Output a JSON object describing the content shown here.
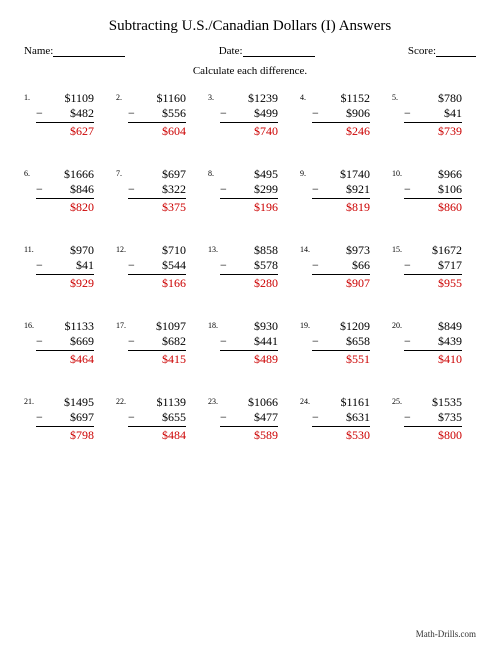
{
  "title": "Subtracting U.S./Canadian Dollars (I) Answers",
  "labels": {
    "name": "Name:",
    "date": "Date:",
    "score": "Score:"
  },
  "instruction": "Calculate each difference.",
  "footer": "Math-Drills.com",
  "colors": {
    "answer": "#cc0000",
    "text": "#000000",
    "background": "#ffffff"
  },
  "currency": "$",
  "problems": [
    {
      "n": 1,
      "a": 1109,
      "b": 482,
      "ans": 627
    },
    {
      "n": 2,
      "a": 1160,
      "b": 556,
      "ans": 604
    },
    {
      "n": 3,
      "a": 1239,
      "b": 499,
      "ans": 740
    },
    {
      "n": 4,
      "a": 1152,
      "b": 906,
      "ans": 246
    },
    {
      "n": 5,
      "a": 780,
      "b": 41,
      "ans": 739
    },
    {
      "n": 6,
      "a": 1666,
      "b": 846,
      "ans": 820
    },
    {
      "n": 7,
      "a": 697,
      "b": 322,
      "ans": 375
    },
    {
      "n": 8,
      "a": 495,
      "b": 299,
      "ans": 196
    },
    {
      "n": 9,
      "a": 1740,
      "b": 921,
      "ans": 819
    },
    {
      "n": 10,
      "a": 966,
      "b": 106,
      "ans": 860
    },
    {
      "n": 11,
      "a": 970,
      "b": 41,
      "ans": 929
    },
    {
      "n": 12,
      "a": 710,
      "b": 544,
      "ans": 166
    },
    {
      "n": 13,
      "a": 858,
      "b": 578,
      "ans": 280
    },
    {
      "n": 14,
      "a": 973,
      "b": 66,
      "ans": 907
    },
    {
      "n": 15,
      "a": 1672,
      "b": 717,
      "ans": 955
    },
    {
      "n": 16,
      "a": 1133,
      "b": 669,
      "ans": 464
    },
    {
      "n": 17,
      "a": 1097,
      "b": 682,
      "ans": 415
    },
    {
      "n": 18,
      "a": 930,
      "b": 441,
      "ans": 489
    },
    {
      "n": 19,
      "a": 1209,
      "b": 658,
      "ans": 551
    },
    {
      "n": 20,
      "a": 849,
      "b": 439,
      "ans": 410
    },
    {
      "n": 21,
      "a": 1495,
      "b": 697,
      "ans": 798
    },
    {
      "n": 22,
      "a": 1139,
      "b": 655,
      "ans": 484
    },
    {
      "n": 23,
      "a": 1066,
      "b": 477,
      "ans": 589
    },
    {
      "n": 24,
      "a": 1161,
      "b": 631,
      "ans": 530
    },
    {
      "n": 25,
      "a": 1535,
      "b": 735,
      "ans": 800
    }
  ]
}
